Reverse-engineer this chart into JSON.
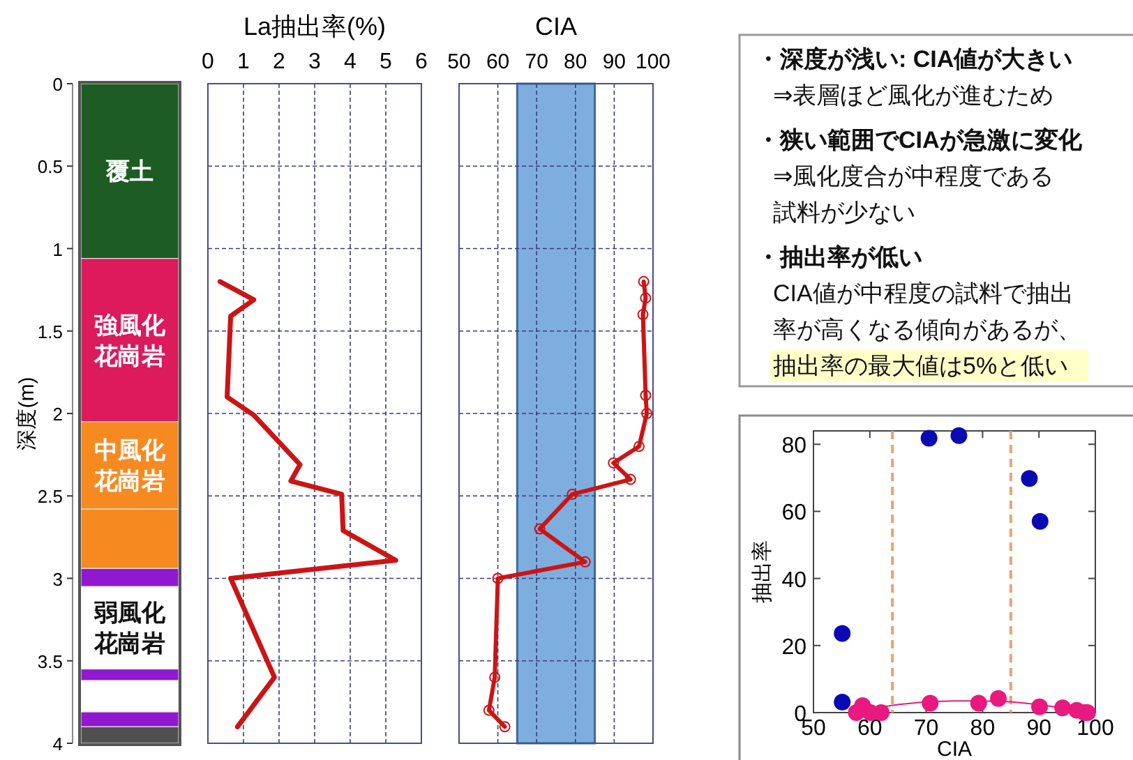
{
  "chart_data": [
    {
      "type": "bar",
      "stacked": true,
      "categories": [
        null
      ],
      "ylabel": "深度(m)",
      "ylim": [
        4,
        0
      ],
      "yticks": [
        0,
        0.5,
        1,
        1.5,
        2,
        2.5,
        3,
        3.5,
        4
      ],
      "series": [
        {
          "name": "覆土",
          "color": "#1d5c22",
          "values": [
            1.06
          ]
        },
        {
          "name": "強風化花崗岩",
          "color": "#dc1a5c",
          "values": [
            0.99
          ]
        },
        {
          "name": "中風化花崗岩",
          "color": "#f68a20",
          "values": [
            0.53
          ]
        },
        {
          "color": "#f68a20",
          "values": [
            0.36
          ]
        },
        {
          "color": "#9019d0",
          "values": [
            0.11
          ]
        },
        {
          "name": "弱風化花崗岩",
          "color": "#ffffff",
          "values": [
            0.5
          ]
        },
        {
          "color": "#9019d0",
          "values": [
            0.07
          ]
        },
        {
          "color": "#ffffff",
          "values": [
            0.19
          ]
        },
        {
          "color": "#9019d0",
          "values": [
            0.09
          ]
        },
        {
          "color": "#505050",
          "values": [
            0.1
          ]
        }
      ]
    },
    {
      "type": "line",
      "xlabel": "La抽出率(%)",
      "xlim": [
        0,
        6
      ],
      "xticks": [
        0,
        1,
        2,
        3,
        4,
        5,
        6
      ],
      "ylim": [
        4,
        0
      ],
      "yticks": [
        0,
        0.5,
        1,
        1.5,
        2,
        2.5,
        3,
        3.5,
        4
      ],
      "tick_labels": "x",
      "grid": true,
      "series": [
        {
          "color": "#cc1414",
          "x": [
            0.34,
            1.29,
            0.64,
            0.54,
            1.29,
            2.59,
            2.33,
            3.76,
            3.8,
            5.28,
            0.64,
            1.87,
            0.83
          ],
          "values": [
            1.2,
            1.31,
            1.41,
            1.9,
            2.01,
            2.31,
            2.41,
            2.49,
            2.71,
            2.89,
            3.0,
            3.6,
            3.9
          ]
        }
      ]
    },
    {
      "type": "line",
      "xlabel": "CIA",
      "xlim": [
        50,
        100
      ],
      "xticks": [
        50,
        60,
        70,
        80,
        90,
        100
      ],
      "ylim": [
        4,
        0
      ],
      "yticks": [
        0,
        0.5,
        1,
        1.5,
        2,
        2.5,
        3,
        3.5,
        4
      ],
      "tick_labels": "x",
      "grid": true,
      "marker": "circle",
      "bands": [
        {
          "axis": "x",
          "from": 65,
          "to": 85,
          "color": "#7eaedd"
        }
      ],
      "series": [
        {
          "color": "#cc1414",
          "x": [
            97.6,
            98.1,
            97.4,
            98.1,
            98.4,
            96.4,
            89.8,
            94.2,
            79.2,
            70.8,
            82.5,
            60.0,
            59.2,
            57.7,
            61.8
          ],
          "values": [
            1.2,
            1.3,
            1.4,
            1.89,
            2.0,
            2.2,
            2.3,
            2.4,
            2.49,
            2.7,
            2.9,
            3.0,
            3.6,
            3.8,
            3.9
          ]
        }
      ]
    },
    {
      "type": "other",
      "annotations": [
        "・深度が浅い: CIA値が大きい",
        "⇒表層ほど風化が進むため",
        "・狭い範囲でCIAが急激に変化",
        "⇒風化度合が中程度である",
        "試料が少ない",
        "・抽出率が低い",
        "CIA値が中程度の試料で抽出",
        "率が高くなる傾向があるが、",
        "抽出率の最大値は5%と低い"
      ]
    },
    {
      "type": "scatter",
      "xlabel": "CIA",
      "ylabel": "抽出率",
      "xlim": [
        50,
        100
      ],
      "xticks": [
        50,
        60,
        70,
        80,
        90,
        100
      ],
      "ylim": [
        0,
        84
      ],
      "yticks": [
        0,
        20,
        40,
        60,
        80
      ],
      "ref_lines": [
        {
          "axis": "x",
          "value": 64,
          "color": "#f0a070",
          "line_style": "dashed"
        },
        {
          "axis": "x",
          "value": 85,
          "color": "#f0a070",
          "line_style": "dashed"
        }
      ],
      "series": [
        {
          "color": "#0a0ab4",
          "x": [
            55.1,
            55.1,
            70.5,
            75.8,
            88.3,
            90.2
          ],
          "values": [
            23.6,
            3.1,
            81.8,
            82.6,
            69.8,
            57.0
          ]
        },
        {
          "color": "#e8197f",
          "x": [
            57.6,
            58.7,
            60.1,
            62.0,
            70.7,
            79.3,
            82.8,
            90.1,
            94.2,
            96.7,
            98.1,
            98.6
          ],
          "values": [
            0,
            2.1,
            0,
            0,
            2.8,
            2.8,
            4.2,
            1.7,
            1.4,
            0.7,
            0,
            0
          ]
        },
        {
          "type": "line",
          "color": "#e8197f",
          "x": [
            57,
            60,
            65,
            70,
            75,
            80,
            85,
            90,
            95,
            98
          ],
          "values": [
            0,
            1.2,
            2.4,
            3.2,
            3.5,
            3.5,
            3.2,
            2.4,
            1.2,
            0.4
          ]
        }
      ]
    }
  ]
}
